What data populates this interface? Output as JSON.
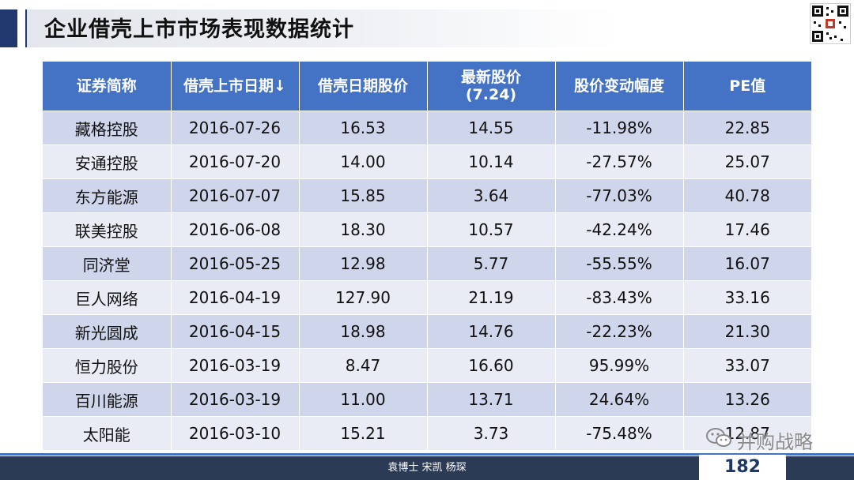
{
  "title": "企业借壳上市市场表现数据统计",
  "table": {
    "headers": [
      {
        "line1": "证券简称",
        "line2": ""
      },
      {
        "line1": "借壳上市日期↓",
        "line2": ""
      },
      {
        "line1": "借壳日期股价",
        "line2": ""
      },
      {
        "line1": "最新股价",
        "line2": "(7.24)"
      },
      {
        "line1": "股价变动幅度",
        "line2": ""
      },
      {
        "line1": "PE值",
        "line2": ""
      }
    ],
    "rows": [
      [
        "藏格控股",
        "2016-07-26",
        "16.53",
        "14.55",
        "-11.98%",
        "22.85"
      ],
      [
        "安通控股",
        "2016-07-20",
        "14.00",
        "10.14",
        "-27.57%",
        "25.07"
      ],
      [
        "东方能源",
        "2016-07-07",
        "15.85",
        "3.64",
        "-77.03%",
        "40.78"
      ],
      [
        "联美控股",
        "2016-06-08",
        "18.30",
        "10.57",
        "-42.24%",
        "17.46"
      ],
      [
        "同济堂",
        "2016-05-25",
        "12.98",
        "5.77",
        "-55.55%",
        "16.07"
      ],
      [
        "巨人网络",
        "2016-04-19",
        "127.90",
        "21.19",
        "-83.43%",
        "33.16"
      ],
      [
        "新光圆成",
        "2016-04-15",
        "18.98",
        "14.76",
        "-22.23%",
        "21.30"
      ],
      [
        "恒力股份",
        "2016-03-19",
        "8.47",
        "16.60",
        "95.99%",
        "33.07"
      ],
      [
        "百川能源",
        "2016-03-19",
        "11.00",
        "13.71",
        "24.64%",
        "13.26"
      ],
      [
        "太阳能",
        "2016-03-10",
        "15.21",
        "3.73",
        "-75.48%",
        "12.87"
      ]
    ]
  },
  "watermark": {
    "text": "并购战略",
    "icon": "wechat-icon"
  },
  "footer": {
    "authors": "袁博士 宋凯 杨琛",
    "page_number": "182"
  },
  "colors": {
    "header_bg": "#4472c4",
    "row_odd": "#cfd5ea",
    "row_even": "#e9ebf5",
    "accent": "#20386e",
    "footer": "#2b3a55"
  }
}
